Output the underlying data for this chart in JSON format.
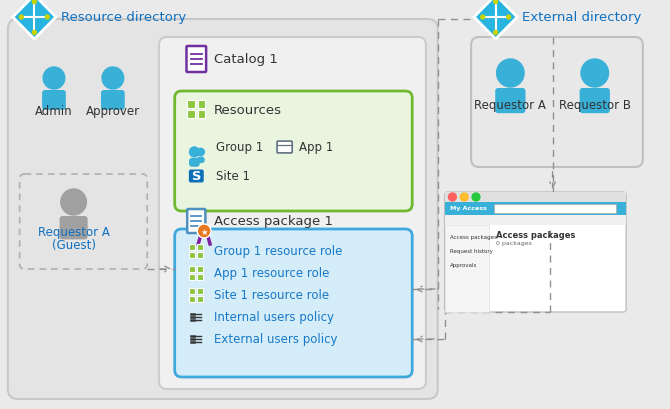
{
  "bg_color": "#eaeaea",
  "resource_dir_label": "Resource directory",
  "external_dir_label": "External directory",
  "catalog_label": "Catalog 1",
  "resources_label": "Resources",
  "access_package_label": "Access package 1",
  "group1_label": "Group 1",
  "app1_label": "App 1",
  "site1_label": "Site 1",
  "admin_label": "Admin",
  "approver_label": "Approver",
  "requestor_a_guest_label1": "Requestor A",
  "requestor_a_guest_label2": "(Guest)",
  "requestor_a_label": "Requestor A",
  "requestor_b_label": "Requestor B",
  "policy_items": [
    "Group 1 resource role",
    "App 1 resource role",
    "Site 1 resource role",
    "Internal users policy",
    "External users policy"
  ],
  "colors": {
    "bg": "#eaeaea",
    "outer_box_fill": "#e4e4e4",
    "outer_box_edge": "#c8c8c8",
    "catalog_box_fill": "#f0f0f0",
    "catalog_box_edge": "#cccccc",
    "resources_fill": "#eaf5e0",
    "resources_edge": "#70b830",
    "access_fill": "#d4edf8",
    "access_edge": "#40a8dc",
    "ext_box_fill": "#e8e8e8",
    "ext_box_edge": "#c0c0c0",
    "diamond_fill": "#28b4e0",
    "diamond_edge": "#ffffff",
    "dot_yellow": "#c8d400",
    "person_blue": "#38b0d8",
    "person_gray": "#a0a0a0",
    "catalog_icon_edge": "#7030a0",
    "catalog_icon_line": "#7030a0",
    "access_icon_edge": "#5090c0",
    "access_icon_line": "#5090c0",
    "grid_green": "#8dc63f",
    "text_dark": "#333333",
    "text_blue": "#1070c0",
    "text_policy_blue": "#1878c8",
    "arrow_gray": "#808080",
    "sharepoint_blue": "#0b70b8",
    "app_icon_gray": "#607080",
    "medal_orange": "#e87820",
    "ribbon_purple": "#8020a0",
    "dashed_color": "#909090"
  }
}
